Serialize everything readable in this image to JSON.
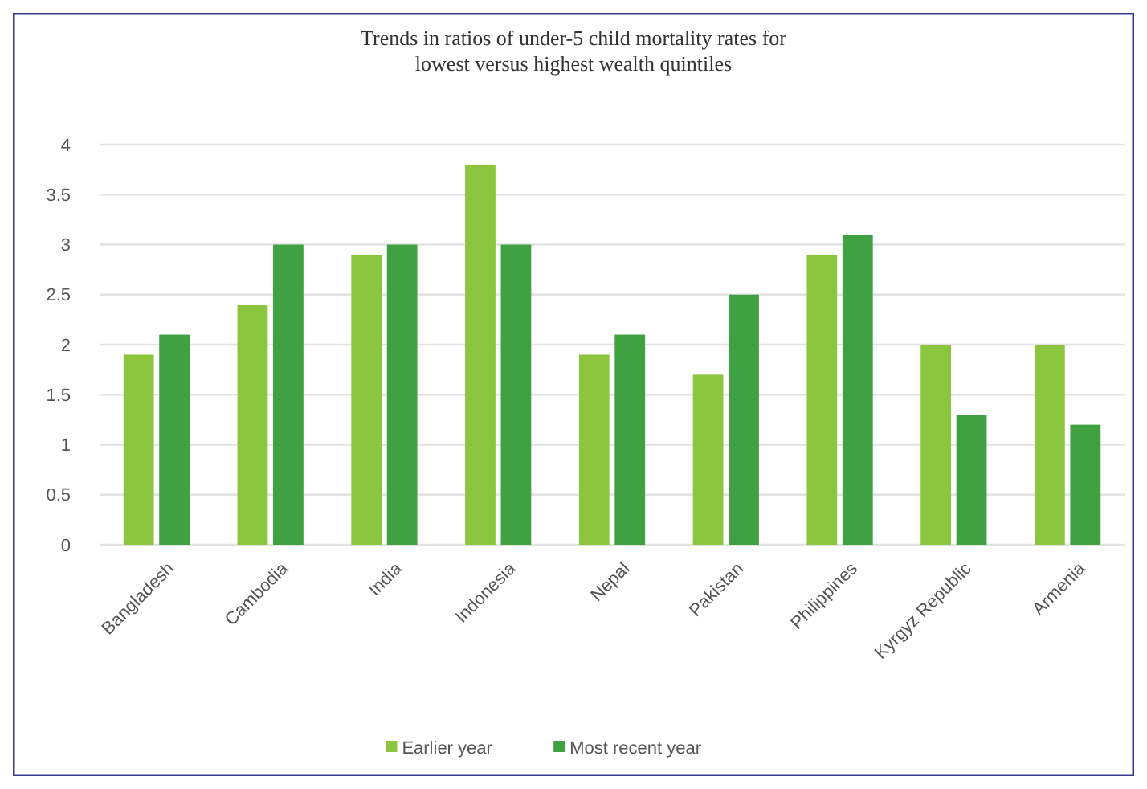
{
  "chart_data": {
    "type": "bar",
    "title": "Trends in ratios of under-5 child mortality rates for lowest versus highest wealth quintiles",
    "categories": [
      "Bangladesh",
      "Cambodia",
      "India",
      "Indonesia",
      "Nepal",
      "Pakistan",
      "Philippines",
      "Kyrgyz Republic",
      "Armenia"
    ],
    "series": [
      {
        "name": "Earlier year",
        "color": "#8cc63f",
        "values": [
          1.9,
          2.4,
          2.9,
          3.8,
          1.9,
          1.7,
          2.9,
          2.0,
          2.0
        ]
      },
      {
        "name": "Most recent year",
        "color": "#3fa142",
        "values": [
          2.1,
          3.0,
          3.0,
          3.0,
          2.1,
          2.5,
          3.1,
          1.3,
          1.2
        ]
      }
    ],
    "ylim": [
      0,
      4
    ],
    "yticks": [
      0,
      {
        "value": 0.5,
        "label": "0.5"
      },
      1,
      {
        "value": 1.5,
        "label": "1.5"
      },
      2,
      {
        "value": 2.5,
        "label": "2.5"
      },
      3,
      {
        "value": 3.5,
        "label": "3.5"
      },
      4
    ],
    "grid": "y",
    "legend": "bottom"
  }
}
